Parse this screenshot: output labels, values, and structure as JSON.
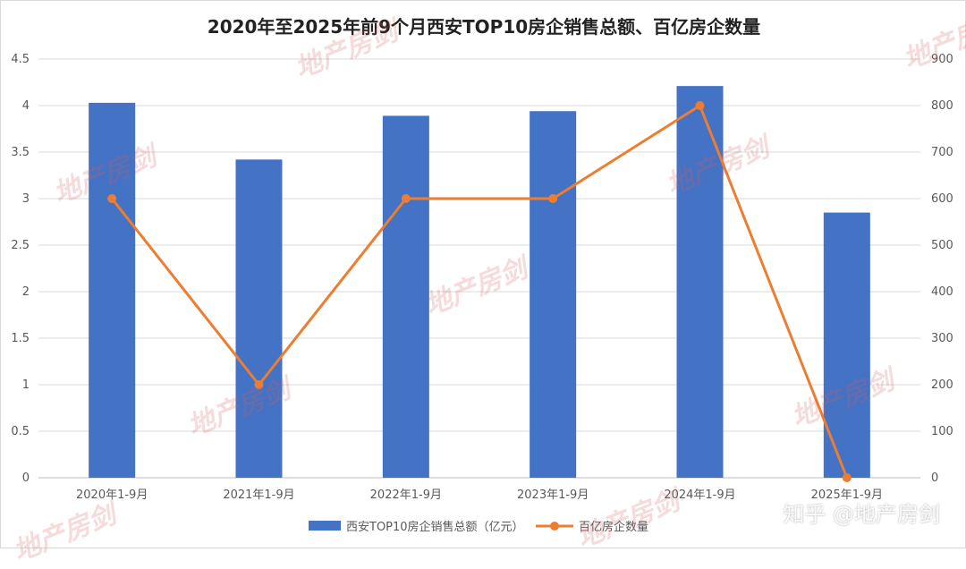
{
  "chart_data": {
    "type": "bar+line",
    "title": "2020年至2025年前9个月西安TOP10房企销售总额、百亿房企数量",
    "categories": [
      "2020年1-9月",
      "2021年1-9月",
      "2022年1-9月",
      "2023年1-9月",
      "2024年1-9月",
      "2025年1-9月"
    ],
    "series": [
      {
        "name": "西安TOP10房企销售总额（亿元）",
        "type": "bar",
        "axis": "left",
        "color": "#4472c4",
        "values": [
          4.03,
          3.42,
          3.89,
          3.94,
          4.21,
          2.85
        ]
      },
      {
        "name": "百亿房企数量",
        "type": "line",
        "axis": "right",
        "color": "#ed7d31",
        "values": [
          600,
          200,
          600,
          600,
          800,
          0
        ]
      }
    ],
    "y_left": {
      "min": 0,
      "max": 4.5,
      "ticks": [
        "0",
        "0.5",
        "1",
        "1.5",
        "2",
        "2.5",
        "3",
        "3.5",
        "4",
        "4.5"
      ]
    },
    "y_right": {
      "min": 0,
      "max": 900,
      "ticks": [
        "0",
        "100",
        "200",
        "300",
        "400",
        "500",
        "600",
        "700",
        "800",
        "900"
      ]
    },
    "grid": true,
    "legend_position": "bottom"
  },
  "watermark": {
    "logo_text": "地产房剑",
    "credit": "知乎 @地产房剑"
  }
}
